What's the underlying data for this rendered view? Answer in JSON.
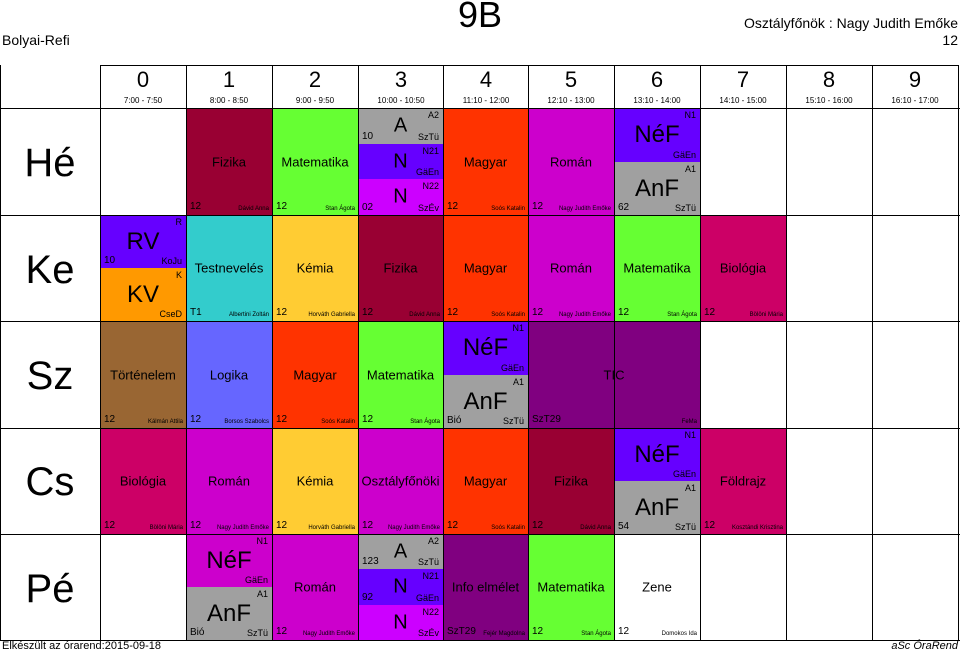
{
  "school": "Bolyai-Refi",
  "class_name": "9B",
  "head_teacher": "Osztályfőnök : Nagy Judith Emőke",
  "head_teacher_room": "12",
  "footer_left": "Elkészült az órarend:2015-09-18",
  "footer_right": "aSc ÓraRend",
  "periods": [
    {
      "num": "0",
      "time": "7:00 - 7:50"
    },
    {
      "num": "1",
      "time": "8:00 - 8:50"
    },
    {
      "num": "2",
      "time": "9:00 - 9:50"
    },
    {
      "num": "3",
      "time": "10:00 - 10:50"
    },
    {
      "num": "4",
      "time": "11:10 - 12:00"
    },
    {
      "num": "5",
      "time": "12:10 - 13:00"
    },
    {
      "num": "6",
      "time": "13:10 - 14:00"
    },
    {
      "num": "7",
      "time": "14:10 - 15:00"
    },
    {
      "num": "8",
      "time": "15:10 - 16:00"
    },
    {
      "num": "9",
      "time": "16:10 - 17:00"
    }
  ],
  "days": [
    "Hé",
    "Ke",
    "Sz",
    "Cs",
    "Pé"
  ],
  "lessons": {
    "he_fizika": {
      "subject": "Fizika",
      "room": "12",
      "teacher": "Dávid Anna",
      "color": "#990033"
    },
    "he_matek": {
      "subject": "Matematika",
      "room": "12",
      "teacher": "Stan Ágota",
      "color": "#66ff33"
    },
    "he_magyar": {
      "subject": "Magyar",
      "room": "12",
      "teacher": "Soós Katalin",
      "color": "#ff3300"
    },
    "he_roman": {
      "subject": "Román",
      "room": "12",
      "teacher": "Nagy Judith Emőke",
      "color": "#cc00cc"
    },
    "he_3_a": {
      "subject": "A",
      "room": "10",
      "group": "A2",
      "teacher": "SzTü",
      "color": "#a0a0a0"
    },
    "he_3_n1": {
      "subject": "N",
      "group": "N21",
      "teacher": "GäEn",
      "color": "#6600ff"
    },
    "he_3_n2": {
      "subject": "N",
      "room": "02",
      "group": "N22",
      "teacher": "SzÉv",
      "color": "#cc00ff"
    },
    "he_6_nef": {
      "subject": "NéF",
      "group": "N1",
      "teacher": "GäEn",
      "color": "#6600ff"
    },
    "he_6_anf": {
      "subject": "AnF",
      "room": "62",
      "group": "A1",
      "teacher": "SzTü",
      "color": "#a0a0a0"
    },
    "ke_0_rv": {
      "subject": "RV",
      "room": "10",
      "group": "R",
      "teacher": "KoJu",
      "color": "#6600ff"
    },
    "ke_0_kv": {
      "subject": "KV",
      "group": "K",
      "teacher": "CseD",
      "color": "#ff9900"
    },
    "ke_testn": {
      "subject": "Testnevelés",
      "room": "T1",
      "teacher": "Albertini Zoltán",
      "color": "#33cccc"
    },
    "ke_kemia": {
      "subject": "Kémia",
      "room": "12",
      "teacher": "Horváth Gabriella",
      "color": "#ffcc33"
    },
    "ke_fizika": {
      "subject": "Fizika",
      "room": "12",
      "teacher": "Dávid Anna",
      "color": "#990033"
    },
    "ke_magyar": {
      "subject": "Magyar",
      "room": "12",
      "teacher": "Soós Katalin",
      "color": "#ff3300"
    },
    "ke_roman": {
      "subject": "Román",
      "room": "12",
      "teacher": "Nagy Judith Emőke",
      "color": "#cc00cc"
    },
    "ke_matek": {
      "subject": "Matematika",
      "room": "12",
      "teacher": "Stan Ágota",
      "color": "#66ff33"
    },
    "ke_bio": {
      "subject": "Biológia",
      "room": "12",
      "teacher": "Bölöni Mária",
      "color": "#cc0066"
    },
    "sz_tort": {
      "subject": "Történelem",
      "room": "12",
      "teacher": "Kálmán Attila",
      "color": "#996633"
    },
    "sz_logika": {
      "subject": "Logika",
      "room": "12",
      "teacher": "Borsos Szabolcs",
      "color": "#6666ff"
    },
    "sz_magyar": {
      "subject": "Magyar",
      "room": "12",
      "teacher": "Soós Katalin",
      "color": "#ff3300"
    },
    "sz_matek": {
      "subject": "Matematika",
      "room": "12",
      "teacher": "Stan Ágota",
      "color": "#66ff33"
    },
    "sz_4_nef": {
      "subject": "NéF",
      "group": "N1",
      "teacher": "GäEn",
      "color": "#6600ff"
    },
    "sz_4_anf": {
      "subject": "AnF",
      "room": "Bió",
      "group": "A1",
      "teacher": "SzTü",
      "color": "#a0a0a0"
    },
    "sz_tic": {
      "subject": "TIC",
      "room": "SzT29",
      "teacher": "FeMa",
      "color": "#800080"
    },
    "cs_bio": {
      "subject": "Biológia",
      "room": "12",
      "teacher": "Bölöni Mária",
      "color": "#cc0066"
    },
    "cs_roman": {
      "subject": "Román",
      "room": "12",
      "teacher": "Nagy Judith Emőke",
      "color": "#cc00cc"
    },
    "cs_kemia": {
      "subject": "Kémia",
      "room": "12",
      "teacher": "Horváth Gabriella",
      "color": "#ffcc33"
    },
    "cs_ofo": {
      "subject": "Osztályfőnöki",
      "room": "12",
      "teacher": "Nagy Judith Emőke",
      "color": "#cc00cc"
    },
    "cs_magyar": {
      "subject": "Magyar",
      "room": "12",
      "teacher": "Soós Katalin",
      "color": "#ff3300"
    },
    "cs_fizika": {
      "subject": "Fizika",
      "room": "12",
      "teacher": "Dávid Anna",
      "color": "#990033"
    },
    "cs_6_nef": {
      "subject": "NéF",
      "group": "N1",
      "teacher": "GäEn",
      "color": "#6600ff"
    },
    "cs_6_anf": {
      "subject": "AnF",
      "room": "54",
      "group": "A1",
      "teacher": "SzTü",
      "color": "#a0a0a0"
    },
    "cs_foldr": {
      "subject": "Földrajz",
      "room": "12",
      "teacher": "Kosztándi Krisztina",
      "color": "#cc0066"
    },
    "pe_1_nef": {
      "subject": "NéF",
      "group": "N1",
      "teacher": "GäEn",
      "color": "#cc00cc"
    },
    "pe_1_anf": {
      "subject": "AnF",
      "room": "Bió",
      "group": "A1",
      "teacher": "SzTü",
      "color": "#a0a0a0"
    },
    "pe_roman": {
      "subject": "Román",
      "room": "12",
      "teacher": "Nagy Judith Emőke",
      "color": "#cc00cc"
    },
    "pe_3_a": {
      "subject": "A",
      "room": "123",
      "group": "A2",
      "teacher": "SzTü",
      "color": "#a0a0a0"
    },
    "pe_3_n1": {
      "subject": "N",
      "room": "92",
      "group": "N21",
      "teacher": "GäEn",
      "color": "#6600ff"
    },
    "pe_3_n2": {
      "subject": "N",
      "group": "N22",
      "teacher": "SzÉv",
      "color": "#cc00ff"
    },
    "pe_info": {
      "subject": "Info elmélet",
      "room": "SzT29",
      "teacher": "Fejér Magdolna",
      "color": "#800080"
    },
    "pe_matek": {
      "subject": "Matematika",
      "room": "12",
      "teacher": "Stan Ágota",
      "color": "#66ff33"
    },
    "pe_zene": {
      "subject": "Zene",
      "room": "12",
      "teacher": "Domokos Ida",
      "color": "#ffffff"
    }
  }
}
